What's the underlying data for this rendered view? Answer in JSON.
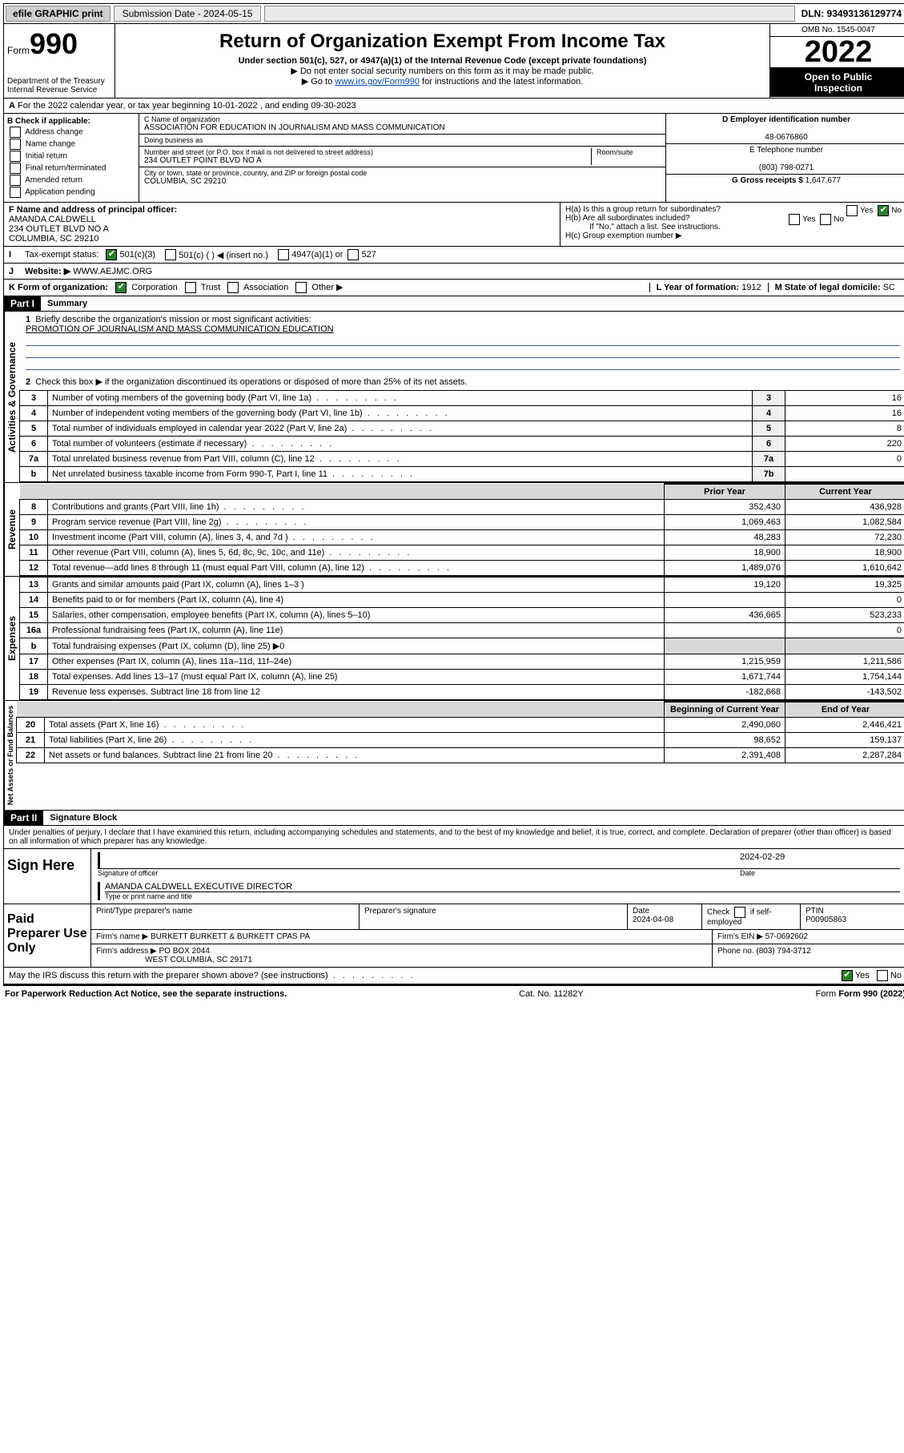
{
  "topbar": {
    "efile": "efile GRAPHIC print",
    "subdate_lbl": "Submission Date - 2024-05-15",
    "dln": "DLN: 93493136129774"
  },
  "header": {
    "form_prefix": "Form",
    "form_no": "990",
    "dept": "Department of the Treasury Internal Revenue Service",
    "title": "Return of Organization Exempt From Income Tax",
    "subtitle": "Under section 501(c), 527, or 4947(a)(1) of the Internal Revenue Code (except private foundations)",
    "note1": "▶ Do not enter social security numbers on this form as it may be made public.",
    "note2_pre": "▶ Go to ",
    "note2_link": "www.irs.gov/Form990",
    "note2_post": " for instructions and the latest information.",
    "omb": "OMB No. 1545-0047",
    "year": "2022",
    "open1": "Open to Public",
    "open2": "Inspection"
  },
  "lineA": "For the 2022 calendar year, or tax year beginning 10-01-2022   , and ending 09-30-2023",
  "boxB": {
    "title": "B Check if applicable:",
    "items": [
      "Address change",
      "Name change",
      "Initial return",
      "Final return/terminated",
      "Amended return",
      "Application pending"
    ]
  },
  "boxC": {
    "name_lbl": "C Name of organization",
    "name": "ASSOCIATION FOR EDUCATION IN JOURNALISM AND MASS COMMUNICATION",
    "dba_lbl": "Doing business as",
    "addr_lbl": "Number and street (or P.O. box if mail is not delivered to street address)",
    "room_lbl": "Room/suite",
    "addr": "234 OUTLET POINT BLVD NO A",
    "city_lbl": "City or town, state or province, country, and ZIP or foreign postal code",
    "city": "COLUMBIA, SC  29210"
  },
  "boxD": {
    "lbl": "D Employer identification number",
    "val": "48-0676860"
  },
  "boxE": {
    "lbl": "E Telephone number",
    "val": "(803) 798-0271"
  },
  "boxG": {
    "lbl": "G Gross receipts $",
    "val": "1,647,677"
  },
  "boxF": {
    "lbl": "F Name and address of principal officer:",
    "name": "AMANDA CALDWELL",
    "addr1": "234 OUTLET BLVD NO A",
    "addr2": "COLUMBIA, SC  29210"
  },
  "boxH": {
    "a": "H(a)  Is this a group return for subordinates?",
    "b": "H(b)  Are all subordinates included?",
    "bnote": "If \"No,\" attach a list. See instructions.",
    "c": "H(c)  Group exemption number ▶",
    "yes": "Yes",
    "no": "No"
  },
  "rowI": {
    "lbl": "Tax-exempt status:",
    "c3": "501(c)(3)",
    "c": "501(c) (   ) ◀ (insert no.)",
    "a1": "4947(a)(1) or",
    "527": "527"
  },
  "rowJ": {
    "lbl": "Website: ▶",
    "val": "WWW.AEJMC.ORG"
  },
  "rowK": {
    "lbl": "K Form of organization:",
    "corp": "Corporation",
    "trust": "Trust",
    "assoc": "Association",
    "other": "Other ▶"
  },
  "rowL": {
    "lbl": "L Year of formation:",
    "val": "1912"
  },
  "rowM": {
    "lbl": "M State of legal domicile:",
    "val": "SC"
  },
  "part1": {
    "hdr": "Part I",
    "title": "Summary",
    "l1": "Briefly describe the organization's mission or most significant activities:",
    "l1v": "PROMOTION OF JOURNALISM AND MASS COMMUNICATION EDUCATION",
    "l2": "Check this box ▶     if the organization discontinued its operations or disposed of more than 25% of its net assets.",
    "prior": "Prior Year",
    "current": "Current Year",
    "begin": "Beginning of Current Year",
    "end": "End of Year"
  },
  "govlines": [
    {
      "n": "3",
      "t": "Number of voting members of the governing body (Part VI, line 1a)",
      "b": "3",
      "v": "16"
    },
    {
      "n": "4",
      "t": "Number of independent voting members of the governing body (Part VI, line 1b)",
      "b": "4",
      "v": "16"
    },
    {
      "n": "5",
      "t": "Total number of individuals employed in calendar year 2022 (Part V, line 2a)",
      "b": "5",
      "v": "8"
    },
    {
      "n": "6",
      "t": "Total number of volunteers (estimate if necessary)",
      "b": "6",
      "v": "220"
    },
    {
      "n": "7a",
      "t": "Total unrelated business revenue from Part VIII, column (C), line 12",
      "b": "7a",
      "v": "0"
    },
    {
      "n": "b",
      "t": "Net unrelated business taxable income from Form 990-T, Part I, line 11",
      "b": "7b",
      "v": ""
    }
  ],
  "revlines": [
    {
      "n": "8",
      "t": "Contributions and grants (Part VIII, line 1h)",
      "p": "352,430",
      "c": "436,928"
    },
    {
      "n": "9",
      "t": "Program service revenue (Part VIII, line 2g)",
      "p": "1,069,463",
      "c": "1,082,584"
    },
    {
      "n": "10",
      "t": "Investment income (Part VIII, column (A), lines 3, 4, and 7d )",
      "p": "48,283",
      "c": "72,230"
    },
    {
      "n": "11",
      "t": "Other revenue (Part VIII, column (A), lines 5, 6d, 8c, 9c, 10c, and 11e)",
      "p": "18,900",
      "c": "18,900"
    },
    {
      "n": "12",
      "t": "Total revenue—add lines 8 through 11 (must equal Part VIII, column (A), line 12)",
      "p": "1,489,076",
      "c": "1,610,642"
    }
  ],
  "explines": [
    {
      "n": "13",
      "t": "Grants and similar amounts paid (Part IX, column (A), lines 1–3 )",
      "p": "19,120",
      "c": "19,325"
    },
    {
      "n": "14",
      "t": "Benefits paid to or for members (Part IX, column (A), line 4)",
      "p": "",
      "c": "0"
    },
    {
      "n": "15",
      "t": "Salaries, other compensation, employee benefits (Part IX, column (A), lines 5–10)",
      "p": "436,665",
      "c": "523,233"
    },
    {
      "n": "16a",
      "t": "Professional fundraising fees (Part IX, column (A), line 11e)",
      "p": "",
      "c": "0"
    },
    {
      "n": "b",
      "t": "Total fundraising expenses (Part IX, column (D), line 25) ▶0",
      "p": "",
      "c": "",
      "shade": true
    },
    {
      "n": "17",
      "t": "Other expenses (Part IX, column (A), lines 11a–11d, 11f–24e)",
      "p": "1,215,959",
      "c": "1,211,586"
    },
    {
      "n": "18",
      "t": "Total expenses. Add lines 13–17 (must equal Part IX, column (A), line 25)",
      "p": "1,671,744",
      "c": "1,754,144"
    },
    {
      "n": "19",
      "t": "Revenue less expenses. Subtract line 18 from line 12",
      "p": "-182,668",
      "c": "-143,502"
    }
  ],
  "netlines": [
    {
      "n": "20",
      "t": "Total assets (Part X, line 16)",
      "p": "2,490,060",
      "c": "2,446,421"
    },
    {
      "n": "21",
      "t": "Total liabilities (Part X, line 26)",
      "p": "98,652",
      "c": "159,137"
    },
    {
      "n": "22",
      "t": "Net assets or fund balances. Subtract line 21 from line 20",
      "p": "2,391,408",
      "c": "2,287,284"
    }
  ],
  "sidelabels": {
    "gov": "Activities & Governance",
    "rev": "Revenue",
    "exp": "Expenses",
    "net": "Net Assets or Fund Balances"
  },
  "part2": {
    "hdr": "Part II",
    "title": "Signature Block",
    "penalty": "Under penalties of perjury, I declare that I have examined this return, including accompanying schedules and statements, and to the best of my knowledge and belief, it is true, correct, and complete. Declaration of preparer (other than officer) is based on all information of which preparer has any knowledge."
  },
  "sign": {
    "here": "Sign Here",
    "sigoff": "Signature of officer",
    "date": "Date",
    "sigdate": "2024-02-29",
    "nametitle": "AMANDA CALDWELL  EXECUTIVE DIRECTOR",
    "nametitle_lbl": "Type or print name and title"
  },
  "paid": {
    "title": "Paid Preparer Use Only",
    "prep_name_lbl": "Print/Type preparer's name",
    "prep_sig_lbl": "Preparer's signature",
    "date_lbl": "Date",
    "date": "2024-04-08",
    "check_lbl": "Check",
    "self": "if self-employed",
    "ptin_lbl": "PTIN",
    "ptin": "P00905863",
    "firm_name_lbl": "Firm's name    ▶",
    "firm_name": "BURKETT BURKETT & BURKETT CPAS PA",
    "firm_ein_lbl": "Firm's EIN ▶",
    "firm_ein": "57-0692602",
    "firm_addr_lbl": "Firm's address ▶",
    "firm_addr1": "PO BOX 2044",
    "firm_addr2": "WEST COLUMBIA, SC  29171",
    "phone_lbl": "Phone no.",
    "phone": "(803) 794-3712"
  },
  "may": {
    "q": "May the IRS discuss this return with the preparer shown above? (see instructions)",
    "yes": "Yes",
    "no": "No"
  },
  "footer": {
    "pra": "For Paperwork Reduction Act Notice, see the separate instructions.",
    "cat": "Cat. No. 11282Y",
    "form": "Form 990 (2022)"
  }
}
